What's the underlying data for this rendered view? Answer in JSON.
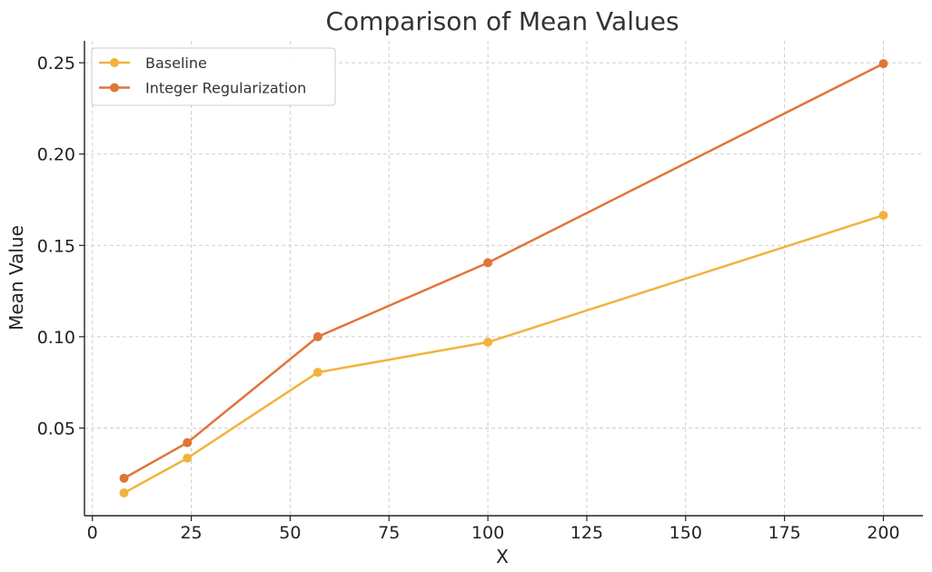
{
  "chart_data": {
    "type": "line",
    "title": "Comparison of Mean Values",
    "xlabel": "X",
    "ylabel": "Mean Value",
    "xlim": [
      -2,
      210
    ],
    "ylim": [
      0.002,
      0.262
    ],
    "x_ticks": [
      0,
      25,
      50,
      75,
      100,
      125,
      150,
      175,
      200
    ],
    "y_ticks": [
      0.05,
      0.1,
      0.15,
      0.2,
      0.25
    ],
    "x_tick_labels": [
      "0",
      "25",
      "50",
      "75",
      "100",
      "125",
      "150",
      "175",
      "200"
    ],
    "y_tick_labels": [
      "0.05",
      "0.10",
      "0.15",
      "0.20",
      "0.25"
    ],
    "grid": true,
    "legend_position": "top-left",
    "series": [
      {
        "name": "Baseline",
        "color": "#f2b33d",
        "x": [
          8,
          24,
          57,
          100,
          200
        ],
        "y": [
          0.0145,
          0.0335,
          0.0805,
          0.097,
          0.1665
        ]
      },
      {
        "name": "Integer Regularization",
        "color": "#e07538",
        "x": [
          8,
          24,
          57,
          100,
          200
        ],
        "y": [
          0.0225,
          0.042,
          0.1,
          0.1405,
          0.2495
        ]
      }
    ]
  }
}
